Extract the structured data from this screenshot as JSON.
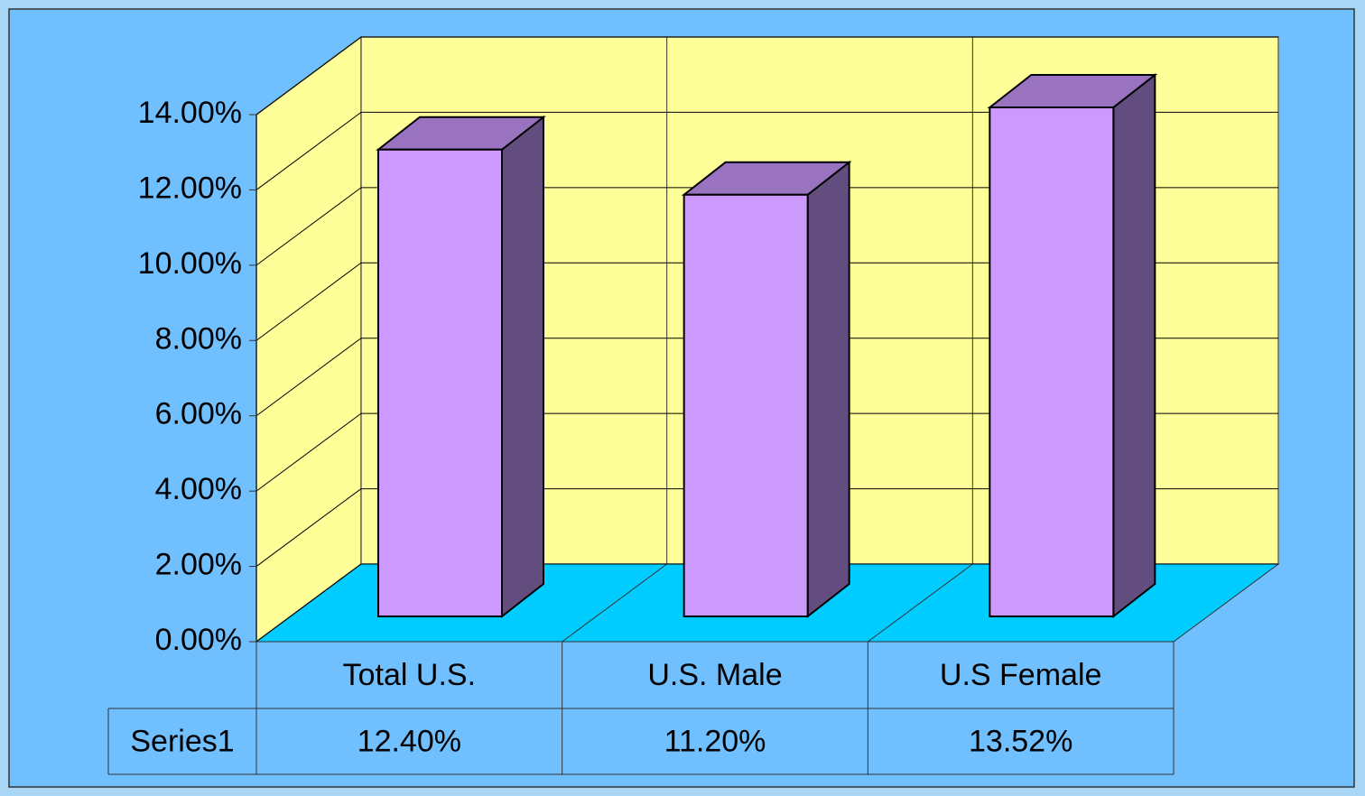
{
  "chart_data": {
    "type": "bar3d",
    "categories": [
      "Total U.S.",
      "U.S. Male",
      "U.S Female"
    ],
    "series": [
      {
        "name": "Series1",
        "color": "#cc99ff",
        "values": [
          12.4,
          11.2,
          13.52
        ],
        "value_labels": [
          "12.40%",
          "11.20%",
          "13.52%"
        ]
      }
    ],
    "ylim": [
      0,
      14
    ],
    "yticks": [
      {
        "value": 0,
        "label": "0.00%"
      },
      {
        "value": 2,
        "label": "2.00%"
      },
      {
        "value": 4,
        "label": "4.00%"
      },
      {
        "value": 6,
        "label": "6.00%"
      },
      {
        "value": 8,
        "label": "8.00%"
      },
      {
        "value": 10,
        "label": "10.00%"
      },
      {
        "value": 12,
        "label": "12.00%"
      },
      {
        "value": 14,
        "label": "14.00%"
      }
    ],
    "grid": true
  }
}
